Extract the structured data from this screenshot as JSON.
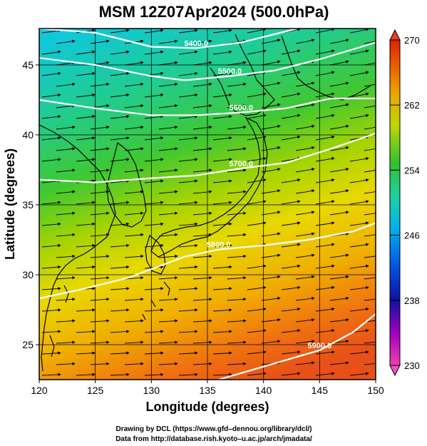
{
  "chart_data": {
    "type": "heatmap",
    "title": "MSM 12Z07Apr2024 (500.0hPa)",
    "xlabel": "Longitude (degrees)",
    "ylabel": "Latitude  (degrees)",
    "xlim": [
      120,
      150
    ],
    "ylim": [
      22.5,
      47.6
    ],
    "x_ticks": [
      "120",
      "125",
      "130",
      "135",
      "140",
      "145",
      "150"
    ],
    "y_ticks": [
      "25",
      "30",
      "35",
      "40",
      "45"
    ],
    "y_tick_values": [
      25,
      30,
      35,
      40,
      45
    ],
    "x_tick_values": [
      120,
      125,
      130,
      135,
      140,
      145,
      150
    ],
    "colorbar": {
      "min": 230,
      "max": 270,
      "ticks": [
        "230",
        "238",
        "246",
        "254",
        "262",
        "270"
      ],
      "tick_values": [
        230,
        238,
        246,
        254,
        262,
        270
      ],
      "colors": [
        "#e040a0",
        "#a000c0",
        "#2020d0",
        "#0070ff",
        "#00c8f0",
        "#20d0a0",
        "#20c040",
        "#90d000",
        "#f0e000",
        "#f8a000",
        "#f06000",
        "#e02000"
      ]
    },
    "contours": [
      {
        "label": "5400.0",
        "points": [
          [
            120,
            47.6
          ],
          [
            125,
            47.3
          ],
          [
            130,
            46.3
          ],
          [
            134,
            46.2
          ],
          [
            138,
            46.6
          ],
          [
            140,
            47.0
          ],
          [
            143,
            47.6
          ]
        ]
      },
      {
        "label": "5500.0",
        "points": [
          [
            120,
            45.5
          ],
          [
            125,
            45.0
          ],
          [
            130,
            44.2
          ],
          [
            133,
            43.9
          ],
          [
            137,
            44.2
          ],
          [
            141,
            44.6
          ],
          [
            145,
            45.4
          ],
          [
            150,
            46.6
          ]
        ]
      },
      {
        "label": "5600.0",
        "points": [
          [
            120,
            42.5
          ],
          [
            125,
            41.9
          ],
          [
            130,
            41.4
          ],
          [
            134,
            41.4
          ],
          [
            138,
            41.6
          ],
          [
            142,
            41.9
          ],
          [
            146,
            42.6
          ],
          [
            150,
            42.6
          ]
        ]
      },
      {
        "label": "5700.0",
        "points": [
          [
            120,
            36.8
          ],
          [
            125,
            36.6
          ],
          [
            130,
            36.9
          ],
          [
            134,
            37.1
          ],
          [
            138,
            37.6
          ],
          [
            142,
            38.0
          ],
          [
            146,
            39.0
          ],
          [
            150,
            40.1
          ]
        ]
      },
      {
        "label": "5800.0",
        "points": [
          [
            120,
            28.3
          ],
          [
            124,
            29.0
          ],
          [
            128,
            29.8
          ],
          [
            130,
            30.4
          ],
          [
            133,
            31.3
          ],
          [
            136,
            31.8
          ],
          [
            140,
            32.1
          ],
          [
            144,
            32.5
          ],
          [
            148,
            33.1
          ],
          [
            150,
            33.7
          ]
        ]
      },
      {
        "label": "5900.0",
        "points": [
          [
            136,
            22.5
          ],
          [
            139,
            23.2
          ],
          [
            142,
            23.9
          ],
          [
            145,
            24.6
          ],
          [
            148,
            25.9
          ],
          [
            150,
            27.2
          ]
        ]
      }
    ]
  },
  "credits": {
    "line1": "Drawing by DCL (https://www.gfd–dennou.org/library/dcl/)",
    "line2": "Data from http://database.rish.kyoto–u.ac.jp/arch/jmadata/"
  }
}
